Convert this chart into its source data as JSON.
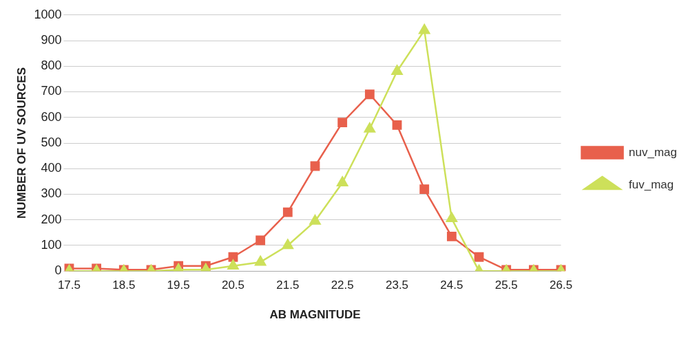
{
  "chart_data": {
    "type": "line",
    "xlabel": "AB MAGNITUDE",
    "ylabel": "NUMBER OF UV SOURCES",
    "categories": [
      "17.5",
      null,
      "18.5",
      null,
      "19.5",
      null,
      "20.5",
      null,
      "21.5",
      null,
      "22.5",
      null,
      "23.5",
      null,
      "24.5",
      null,
      "25.5",
      null,
      "26.5"
    ],
    "series": [
      {
        "name": "nuv_mag",
        "color": "#e8604c",
        "marker": "square",
        "values": [
          10,
          10,
          5,
          5,
          20,
          20,
          55,
          120,
          230,
          410,
          580,
          690,
          570,
          320,
          135,
          55,
          5,
          5,
          5
        ]
      },
      {
        "name": "fuv_mag",
        "color": "#cde05a",
        "marker": "triangle",
        "values": [
          0,
          0,
          0,
          0,
          5,
          5,
          20,
          35,
          100,
          195,
          345,
          555,
          780,
          940,
          205,
          0,
          0,
          0,
          0
        ]
      }
    ],
    "ylim": [
      0,
      1000
    ],
    "yticks": [
      0,
      100,
      200,
      300,
      400,
      500,
      600,
      700,
      800,
      900,
      1000
    ],
    "grid": "y",
    "legend": "right"
  }
}
